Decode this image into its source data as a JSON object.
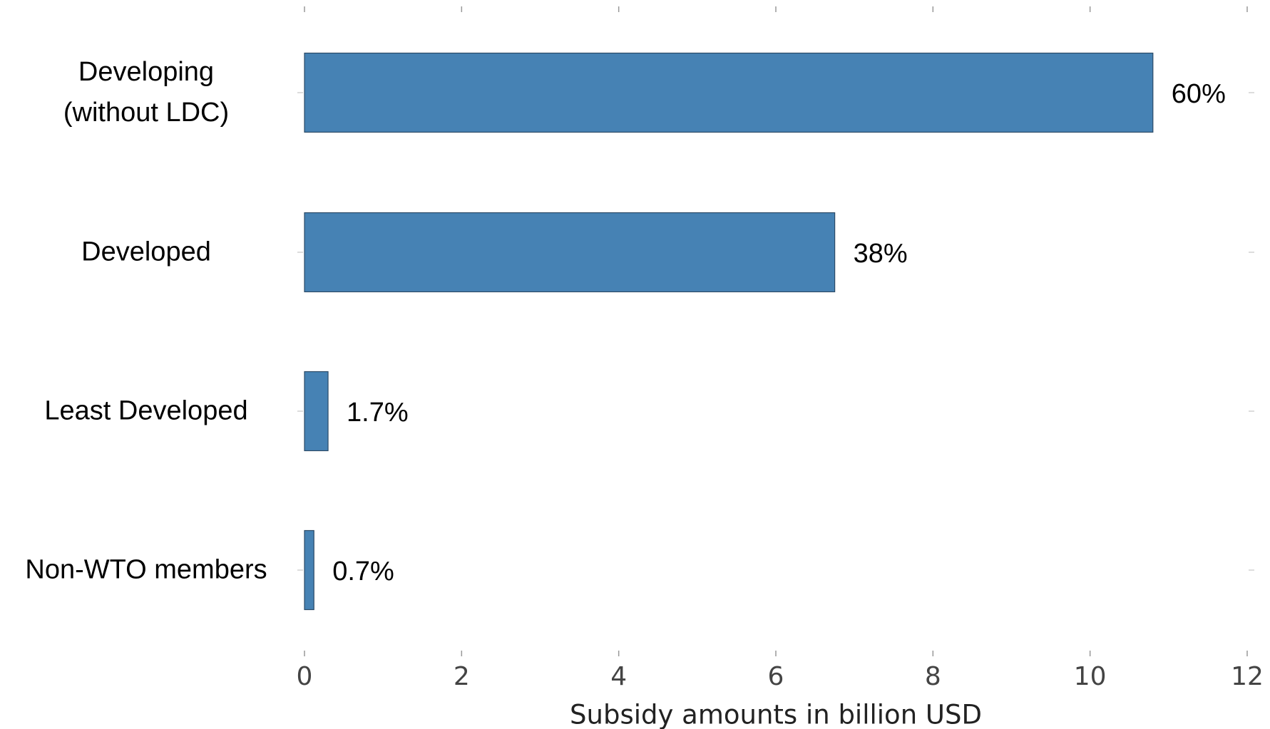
{
  "chart_data": {
    "type": "hbar",
    "categories": [
      "Developing\n(without LDC)",
      "Developed",
      "Least Developed",
      "Non-WTO members"
    ],
    "values": [
      10.8,
      6.75,
      0.3,
      0.12
    ],
    "share_labels": [
      "60%",
      "38%",
      "1.7%",
      "0.7%"
    ],
    "color": "#4682b4",
    "xlim": [
      0,
      12
    ],
    "xticks": [
      0,
      2,
      4,
      6,
      8,
      10,
      12
    ],
    "xlabel": "Subsidy amounts in billion USD"
  }
}
